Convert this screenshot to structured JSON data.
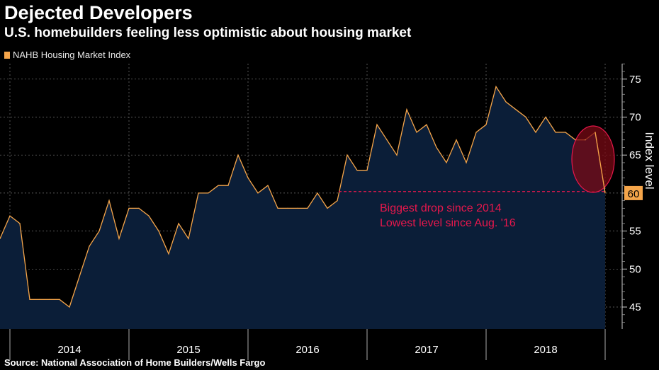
{
  "title": "Dejected Developers",
  "subtitle": "U.S. homebuilders feeling less optimistic about housing market",
  "source": "Source: National Association of Home Builders/Wells Fargo",
  "colors": {
    "line": "#f5a54a",
    "area": "#0b1e38",
    "annotation": "#e8174c",
    "highlight_bubble": "#7a0a14",
    "grid": "#777777"
  },
  "chart_data": {
    "type": "area",
    "series": [
      {
        "name": "NAHB Housing Market Index",
        "values": [
          54,
          57,
          56,
          46,
          46,
          46,
          46,
          45,
          49,
          53,
          55,
          59,
          54,
          58,
          58,
          57,
          55,
          52,
          56,
          54,
          60,
          60,
          61,
          61,
          65,
          62,
          60,
          61,
          58,
          58,
          58,
          58,
          60,
          58,
          59,
          65,
          63,
          63,
          69,
          67,
          65,
          71,
          68,
          69,
          66,
          64,
          67,
          64,
          68,
          69,
          74,
          72,
          71,
          70,
          68,
          70,
          68,
          68,
          67,
          67,
          68,
          60
        ]
      }
    ],
    "x_start": "2013-12",
    "x_labels": [
      "2014",
      "2015",
      "2016",
      "2017",
      "2018"
    ],
    "ylabel": "Index level",
    "y_ticks": [
      45,
      50,
      55,
      60,
      65,
      70,
      75
    ],
    "ylim": [
      42,
      77
    ],
    "grid": true,
    "last_value_label": "60",
    "reference_line_value": 60.2,
    "annotations": [
      "Biggest drop since 2014",
      "Lowest level since Aug. '16"
    ]
  }
}
